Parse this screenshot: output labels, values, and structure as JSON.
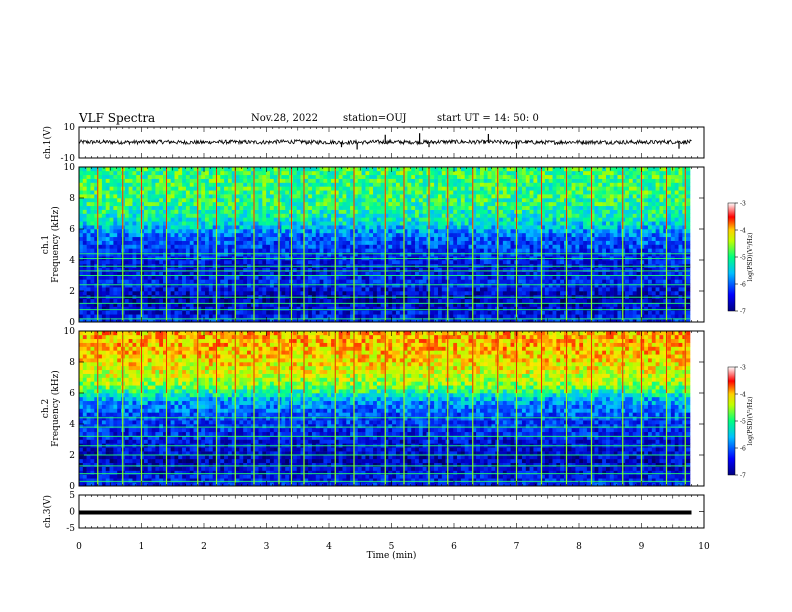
{
  "header": {
    "title": "VLF Spectra",
    "date": "Nov.28, 2022",
    "station": "station=OUJ",
    "start": "start  UT =   14: 50: 0"
  },
  "colors": {
    "spectrogram_scale": [
      "#000000",
      "#00008b",
      "#0000ff",
      "#00bfff",
      "#00ff7f",
      "#adff2f",
      "#ffff00",
      "#ff8c00",
      "#ff0000",
      "#ffc0c0",
      "#ffffff"
    ]
  },
  "chart_data": [
    {
      "type": "line",
      "ylabel": "ch.1(V)",
      "ylim": [
        -10,
        10
      ],
      "yticks": [
        "10",
        "-10"
      ],
      "series": [
        {
          "values_description_mean": 0,
          "values": [
            0.3,
            0.2,
            0.4,
            0.1,
            0.3,
            0.2,
            0.5,
            0.2,
            0.1,
            0.3,
            0.2,
            0.4,
            0.3,
            0.2,
            0.1,
            0.3,
            0.2,
            0.2,
            0.4,
            0.3
          ]
        }
      ],
      "spikes": [
        {
          "x": 4.2,
          "y": -3
        },
        {
          "x": 4.45,
          "y": -4.5
        },
        {
          "x": 4.9,
          "y": 5
        },
        {
          "x": 5.45,
          "y": 6
        },
        {
          "x": 5.6,
          "y": -3
        },
        {
          "x": 6.55,
          "y": 5.5
        },
        {
          "x": 7.0,
          "y": -4
        },
        {
          "x": 9.6,
          "y": -4
        }
      ]
    },
    {
      "type": "heatmap",
      "ylabel_line1": "ch.1",
      "ylabel_line2": "Frequency  (kHz)",
      "ylim": [
        0,
        10
      ],
      "yticks": [
        "0",
        "2",
        "4",
        "6",
        "8",
        "10"
      ],
      "colorbar": {
        "range": [
          -7,
          -3
        ],
        "ticks": [
          "-3",
          "-4",
          "-5",
          "-6",
          "-7"
        ],
        "label": "log(PSD)(V²/Hz)"
      },
      "band_profile": [
        {
          "freq": 0.5,
          "level": -6.3
        },
        {
          "freq": 1.5,
          "level": -6.6
        },
        {
          "freq": 2.5,
          "level": -6.2
        },
        {
          "freq": 3.5,
          "level": -6.4
        },
        {
          "freq": 4.5,
          "level": -6.1
        },
        {
          "freq": 5.5,
          "level": -5.9
        },
        {
          "freq": 6.5,
          "level": -5.2
        },
        {
          "freq": 7.5,
          "level": -5.0
        },
        {
          "freq": 8.5,
          "level": -4.9
        },
        {
          "freq": 9.5,
          "level": -4.9
        }
      ],
      "horizontal_lines_khz": [
        0.2,
        0.8,
        1.2,
        1.6,
        2.4,
        3.0,
        3.3,
        3.6,
        4.1,
        4.4
      ],
      "sferic_times_min": [
        0.3,
        0.7,
        1.0,
        1.4,
        1.9,
        2.2,
        2.5,
        2.8,
        3.2,
        3.4,
        3.6,
        4.1,
        4.4,
        4.9,
        5.2,
        5.6,
        5.9,
        6.3,
        6.7,
        7.0,
        7.4,
        7.8,
        8.2,
        8.7,
        9.0,
        9.4,
        9.7
      ]
    },
    {
      "type": "heatmap",
      "ylabel_line1": "ch.2",
      "ylabel_line2": "Frequency  (kHz)",
      "ylim": [
        0,
        10
      ],
      "yticks": [
        "0",
        "2",
        "4",
        "6",
        "8",
        "10"
      ],
      "colorbar": {
        "range": [
          -7,
          -3
        ],
        "ticks": [
          "-3",
          "-4",
          "-5",
          "-6",
          "-7"
        ],
        "label": "log(PSD)(V²/Hz)"
      },
      "band_profile": [
        {
          "freq": 0.5,
          "level": -6.3
        },
        {
          "freq": 1.5,
          "level": -6.5
        },
        {
          "freq": 2.5,
          "level": -6.4
        },
        {
          "freq": 3.5,
          "level": -6.2
        },
        {
          "freq": 4.5,
          "level": -6.0
        },
        {
          "freq": 5.5,
          "level": -5.6
        },
        {
          "freq": 6.5,
          "level": -4.6
        },
        {
          "freq": 7.5,
          "level": -4.3
        },
        {
          "freq": 8.5,
          "level": -4.1
        },
        {
          "freq": 9.5,
          "level": -4.0
        }
      ],
      "horizontal_lines_khz": [
        0.3,
        0.8,
        1.3,
        2.0,
        2.6,
        3.2,
        3.8,
        4.4
      ],
      "sferic_times_min": [
        0.3,
        0.7,
        1.0,
        1.4,
        1.9,
        2.2,
        2.5,
        2.8,
        3.2,
        3.4,
        3.6,
        4.1,
        4.4,
        4.9,
        5.2,
        5.6,
        5.9,
        6.3,
        6.7,
        7.0,
        7.4,
        7.8,
        8.2,
        8.7,
        9.0,
        9.4,
        9.7
      ]
    },
    {
      "type": "line",
      "ylabel": "ch.3(V)",
      "ylim": [
        -5,
        5
      ],
      "yticks": [
        "5",
        "0",
        "-5"
      ],
      "series": [
        {
          "values": [
            0,
            0
          ]
        }
      ]
    }
  ],
  "xaxis": {
    "label": "Time  (min)",
    "range": [
      0,
      10
    ],
    "ticks": [
      "0",
      "1",
      "2",
      "3",
      "4",
      "5",
      "6",
      "7",
      "8",
      "9",
      "10"
    ]
  }
}
